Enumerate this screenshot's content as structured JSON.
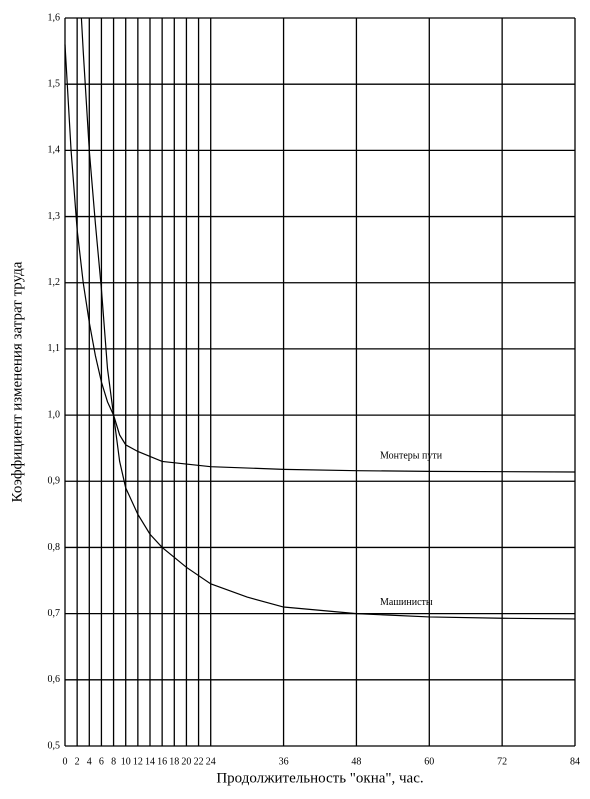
{
  "chart_data": {
    "type": "line",
    "xlabel": "Продолжительность \"окна\", час.",
    "ylabel": "Коэффициент изменения затрат труда",
    "xlim": [
      0,
      84
    ],
    "ylim": [
      0.5,
      1.6
    ],
    "xticks": [
      0,
      2,
      4,
      6,
      8,
      10,
      12,
      14,
      16,
      18,
      20,
      22,
      24,
      36,
      48,
      60,
      72,
      84
    ],
    "yticks": [
      {
        "value": 0.5,
        "label": "0,5"
      },
      {
        "value": 0.6,
        "label": "0,6"
      },
      {
        "value": 0.7,
        "label": "0,7"
      },
      {
        "value": 0.8,
        "label": "0,8"
      },
      {
        "value": 0.9,
        "label": "0,9"
      },
      {
        "value": 1.0,
        "label": "1,0"
      },
      {
        "value": 1.1,
        "label": "1,1"
      },
      {
        "value": 1.2,
        "label": "1,2"
      },
      {
        "value": 1.3,
        "label": "1,3"
      },
      {
        "value": 1.4,
        "label": "1,4"
      },
      {
        "value": 1.5,
        "label": "1,5"
      },
      {
        "value": 1.6,
        "label": "1,6"
      }
    ],
    "grid": true,
    "series": [
      {
        "name": "Монтеры пути",
        "color": "#000000",
        "x": [
          2.7,
          3,
          4,
          5,
          6,
          7,
          8,
          9,
          10,
          12,
          16,
          24,
          36,
          48,
          60,
          84
        ],
        "values": [
          1.6,
          1.55,
          1.4,
          1.29,
          1.19,
          1.07,
          1.0,
          0.97,
          0.955,
          0.945,
          0.93,
          0.922,
          0.918,
          0.916,
          0.915,
          0.914
        ]
      },
      {
        "name": "Машинисты",
        "color": "#000000",
        "x": [
          0,
          1,
          2,
          3,
          4,
          5,
          6,
          7,
          8,
          9,
          10,
          12,
          14,
          16,
          20,
          24,
          30,
          36,
          48,
          60,
          72,
          84
        ],
        "values": [
          1.56,
          1.4,
          1.28,
          1.2,
          1.14,
          1.09,
          1.05,
          1.02,
          1.0,
          0.93,
          0.89,
          0.85,
          0.82,
          0.8,
          0.77,
          0.745,
          0.725,
          0.71,
          0.7,
          0.695,
          0.693,
          0.692
        ]
      }
    ]
  }
}
